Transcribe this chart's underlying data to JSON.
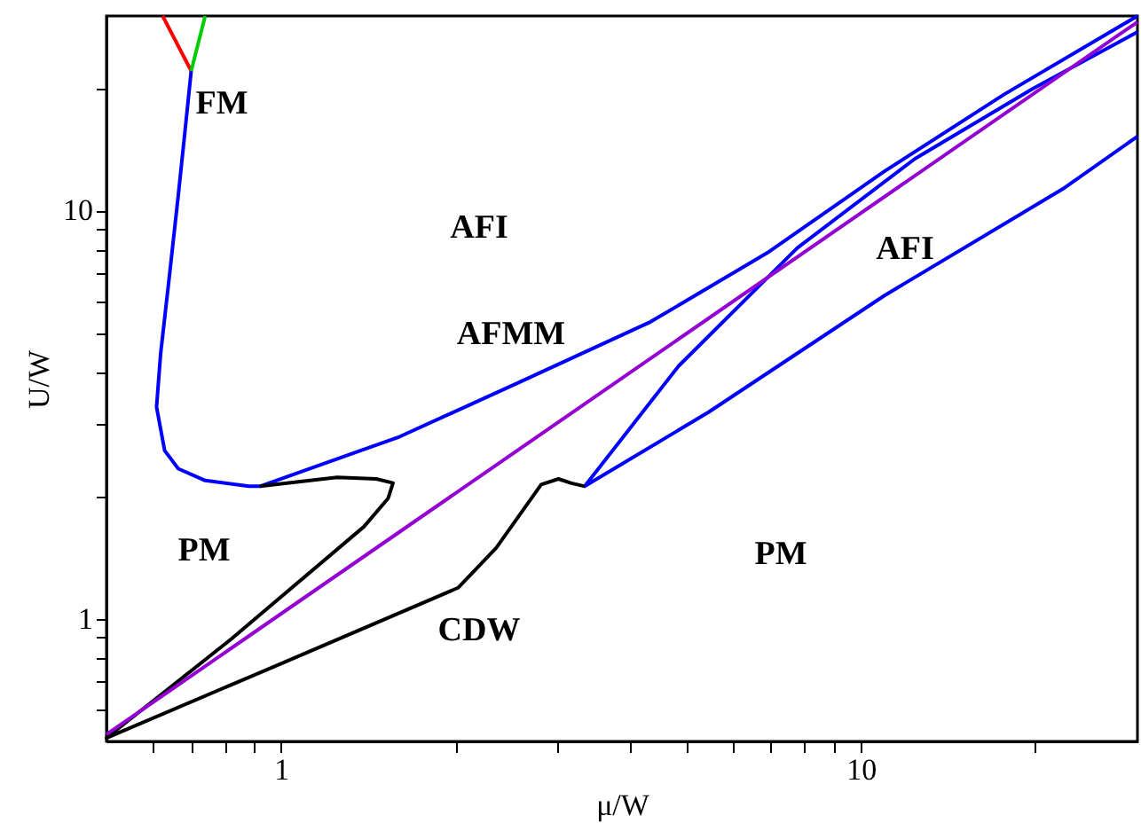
{
  "chart_data": {
    "type": "line",
    "xlabel": "μ/W",
    "ylabel": "U/W",
    "log": "xy",
    "grid": false,
    "marker": "none",
    "line_style": "solid",
    "xlim": [
      0.5,
      30
    ],
    "ylim": [
      0.5,
      30
    ],
    "xticks": [
      {
        "value": 0.6,
        "label": null
      },
      {
        "value": 0.7,
        "label": null
      },
      {
        "value": 0.8,
        "label": null
      },
      {
        "value": 0.9,
        "label": null
      },
      1,
      {
        "value": 2,
        "label": null
      },
      {
        "value": 3,
        "label": null
      },
      {
        "value": 4,
        "label": null
      },
      {
        "value": 5,
        "label": null
      },
      {
        "value": 6,
        "label": null
      },
      {
        "value": 7,
        "label": null
      },
      {
        "value": 8,
        "label": null
      },
      {
        "value": 9,
        "label": null
      },
      10,
      {
        "value": 20,
        "label": null
      }
    ],
    "yticks": [
      {
        "value": 0.6,
        "label": null
      },
      {
        "value": 0.7,
        "label": null
      },
      {
        "value": 0.8,
        "label": null
      },
      {
        "value": 0.9,
        "label": null
      },
      1,
      {
        "value": 2,
        "label": null
      },
      {
        "value": 3,
        "label": null
      },
      {
        "value": 4,
        "label": null
      },
      {
        "value": 5,
        "label": null
      },
      {
        "value": 6,
        "label": null
      },
      {
        "value": 7,
        "label": null
      },
      {
        "value": 8,
        "label": null
      },
      {
        "value": 9,
        "label": null
      },
      10,
      {
        "value": 20,
        "label": null
      }
    ],
    "series": [
      {
        "color": "#0000ff",
        "x": [
          0.7,
          0.685,
          0.665,
          0.64,
          0.62,
          0.61,
          0.63,
          0.665,
          0.74,
          0.88,
          0.92,
          1.6,
          2.54,
          4.34,
          6.89,
          11.0,
          17.7,
          30
        ],
        "values": [
          22,
          16.3,
          10.9,
          6.65,
          4.46,
          3.3,
          2.58,
          2.33,
          2.18,
          2.11,
          2.11,
          2.79,
          3.76,
          5.34,
          7.87,
          12.5,
          19.3,
          30
        ]
      },
      {
        "color": "#0000ff",
        "x": [
          30,
          19.8,
          12.4,
          7.77,
          4.85,
          3.34,
          5.47,
          11.0,
          22.3,
          30
        ],
        "values": [
          27.4,
          19.9,
          13.4,
          8.1,
          4.16,
          2.11,
          3.21,
          6.2,
          11.3,
          15.2
        ]
      },
      {
        "color": "#000000",
        "x": [
          0.92,
          1.25,
          1.46,
          1.56,
          1.53,
          1.39,
          0.82,
          0.5,
          1.01,
          2.02,
          2.35,
          2.81,
          3.01,
          3.16,
          3.34
        ],
        "values": [
          2.11,
          2.22,
          2.2,
          2.15,
          1.97,
          1.68,
          0.89,
          0.51,
          0.78,
          1.19,
          1.49,
          2.13,
          2.2,
          2.15,
          2.11
        ]
      },
      {
        "color": "#9400d3",
        "x": [
          0.5,
          1.67,
          30
        ],
        "values": [
          0.52,
          1.7,
          29
        ]
      },
      {
        "color": "#ff0000",
        "x": [
          0.625,
          0.7
        ],
        "values": [
          30,
          22
        ]
      },
      {
        "color": "#00cc00",
        "x": [
          0.7,
          0.74
        ],
        "values": [
          22,
          30
        ]
      }
    ],
    "annotations": [
      "FM",
      "AFI",
      "AFI",
      "AFMM",
      "PM",
      "PM",
      "CDW"
    ]
  }
}
